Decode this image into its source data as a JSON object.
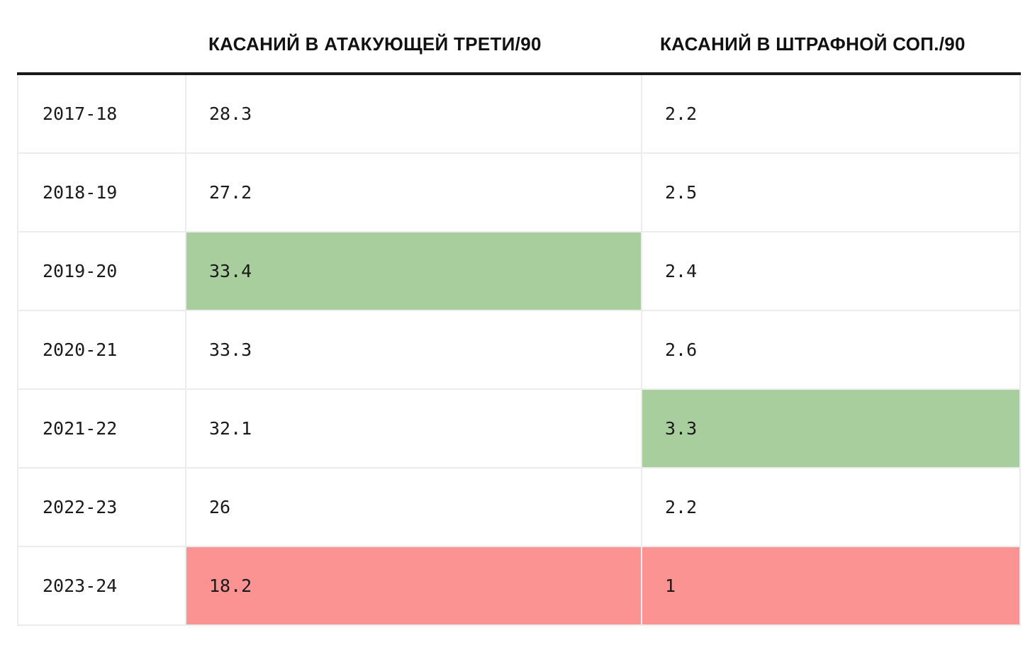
{
  "table": {
    "headers": {
      "season": "",
      "attacking_third": "КАСАНИЙ В АТАКУЮЩЕЙ ТРЕТИ/90",
      "opp_box": "КАСАНИЙ В ШТРАФНОЙ СОП./90"
    },
    "rows": [
      {
        "season": "2017-18",
        "attacking_third": "28.3",
        "opp_box": "2.2",
        "attacking_third_highlight": "none",
        "opp_box_highlight": "none"
      },
      {
        "season": "2018-19",
        "attacking_third": "27.2",
        "opp_box": "2.5",
        "attacking_third_highlight": "none",
        "opp_box_highlight": "none"
      },
      {
        "season": "2019-20",
        "attacking_third": "33.4",
        "opp_box": "2.4",
        "attacking_third_highlight": "green",
        "opp_box_highlight": "none"
      },
      {
        "season": "2020-21",
        "attacking_third": "33.3",
        "opp_box": "2.6",
        "attacking_third_highlight": "none",
        "opp_box_highlight": "none"
      },
      {
        "season": "2021-22",
        "attacking_third": "32.1",
        "opp_box": "3.3",
        "attacking_third_highlight": "none",
        "opp_box_highlight": "green"
      },
      {
        "season": "2022-23",
        "attacking_third": "26",
        "opp_box": "2.2",
        "attacking_third_highlight": "none",
        "opp_box_highlight": "none"
      },
      {
        "season": "2023-24",
        "attacking_third": "18.2",
        "opp_box": "1",
        "attacking_third_highlight": "red",
        "opp_box_highlight": "red"
      }
    ]
  },
  "colors": {
    "highlight_green": "#a8ce9e",
    "highlight_red": "#fb9393",
    "header_rule": "#1a1a1a",
    "grid_line": "#ececec"
  }
}
